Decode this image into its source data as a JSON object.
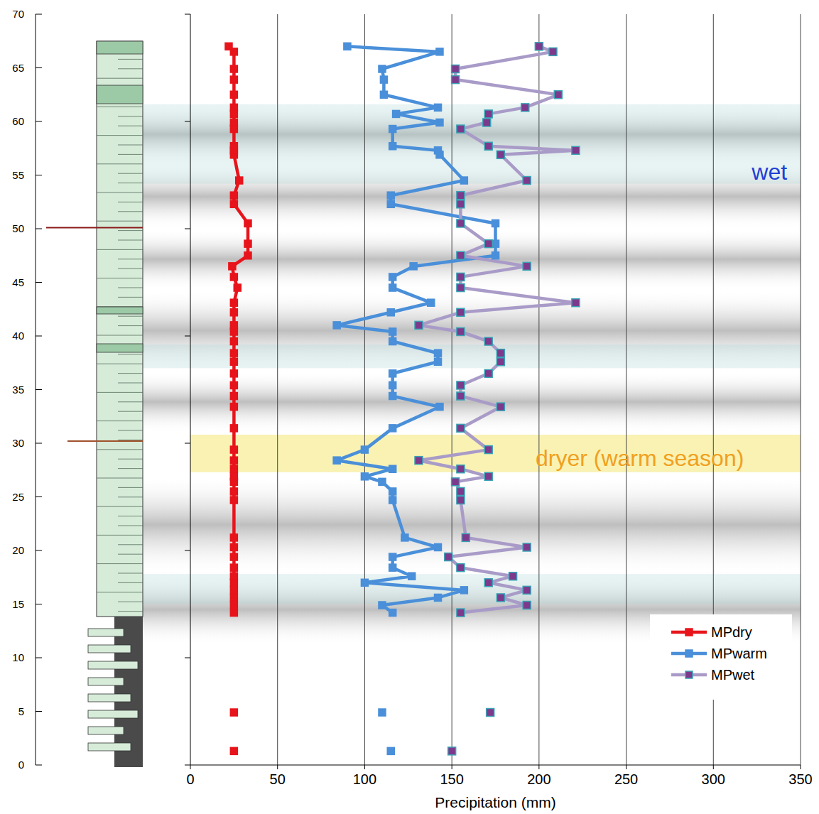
{
  "chart_data": {
    "type": "line",
    "orientation": "horizontal",
    "x_label": "Precipitation (mm)",
    "xlim": [
      0,
      350
    ],
    "xticks": [
      0,
      50,
      100,
      150,
      200,
      250,
      300,
      350
    ],
    "ylim": [
      0,
      70
    ],
    "yticks": [
      0,
      5,
      10,
      15,
      20,
      25,
      30,
      35,
      40,
      45,
      50,
      55,
      60,
      65,
      70
    ],
    "grid": true,
    "legend": "lower right",
    "x": [
      1.3,
      null,
      4.9,
      null,
      14.2,
      14.9,
      15.6,
      16.3,
      17.0,
      17.6,
      18.4,
      19.4,
      20.3,
      21.2,
      24.7,
      25.5,
      26.4,
      26.9,
      27.6,
      28.4,
      29.4,
      31.4,
      33.4,
      34.4,
      35.4,
      36.5,
      37.6,
      38.4,
      39.5,
      40.4,
      41.0,
      42.2,
      43.1,
      44.5,
      45.5,
      46.5,
      47.5,
      48.6,
      50.5,
      52.3,
      53.1,
      54.5,
      56.9,
      57.3,
      57.7,
      59.3,
      59.9,
      60.7,
      61.3,
      62.5,
      63.9,
      64.9,
      66.5,
      67.0
    ],
    "series": [
      {
        "name": "MPdry",
        "color": "#e8141b",
        "marker": "square",
        "values": [
          25,
          null,
          25,
          null,
          25,
          25,
          25,
          25,
          25,
          25,
          25,
          25,
          25,
          25,
          25,
          25,
          25,
          25,
          25,
          25,
          25,
          25,
          25,
          25,
          25,
          25,
          25,
          25,
          25,
          25,
          25,
          25,
          25,
          27,
          25,
          24,
          33,
          33,
          33,
          25,
          25,
          28,
          25,
          25,
          25,
          25,
          25,
          25,
          25,
          25,
          25,
          25,
          25,
          22
        ]
      },
      {
        "name": "MPwarm",
        "color": "#4a8fd9",
        "marker": "square",
        "values": [
          115,
          null,
          110,
          null,
          116,
          110,
          142,
          157,
          100,
          127,
          116,
          116,
          142,
          123,
          116,
          116,
          110,
          100,
          116,
          84,
          100,
          116,
          143,
          116,
          116,
          116,
          142,
          142,
          116,
          116,
          84,
          115,
          138,
          116,
          116,
          128,
          175,
          175,
          175,
          115,
          115,
          157,
          143,
          142,
          116,
          116,
          143,
          118,
          142,
          111,
          111,
          110,
          143,
          90
        ]
      },
      {
        "name": "MPwet",
        "color": "#a99bc8",
        "marker": "square",
        "values": [
          150,
          null,
          172,
          null,
          155,
          193,
          178,
          193,
          171,
          185,
          155,
          148,
          193,
          158,
          155,
          155,
          152,
          171,
          155,
          131,
          171,
          155,
          178,
          155,
          155,
          171,
          178,
          178,
          171,
          155,
          131,
          155,
          221,
          155,
          155,
          193,
          155,
          171,
          155,
          155,
          155,
          193,
          178,
          221,
          171,
          155,
          170,
          171,
          192,
          211,
          152,
          152,
          208,
          200
        ]
      }
    ],
    "shaded_bands": [
      [
        11.2,
        17.8
      ],
      [
        17.8,
        27.0
      ],
      [
        31.0,
        36.7
      ],
      [
        36.7,
        44.3
      ],
      [
        44.3,
        50.0
      ],
      [
        50.0,
        56.0
      ],
      [
        56.0,
        61.6
      ]
    ],
    "wet_bands": [
      [
        15.0,
        17.8
      ],
      [
        37.0,
        39.2
      ],
      [
        54.2,
        61.6
      ]
    ],
    "dry_band": [
      27.3,
      30.8
    ],
    "marker_heights": [
      50.1,
      30.2
    ],
    "annotations": [
      {
        "text": "wet",
        "x": 322,
        "y": 55.3,
        "color": "#1f3fd6"
      },
      {
        "text": "dryer (warm season)",
        "x": 198,
        "y": 28.6,
        "color": "#f0a020"
      }
    ]
  }
}
